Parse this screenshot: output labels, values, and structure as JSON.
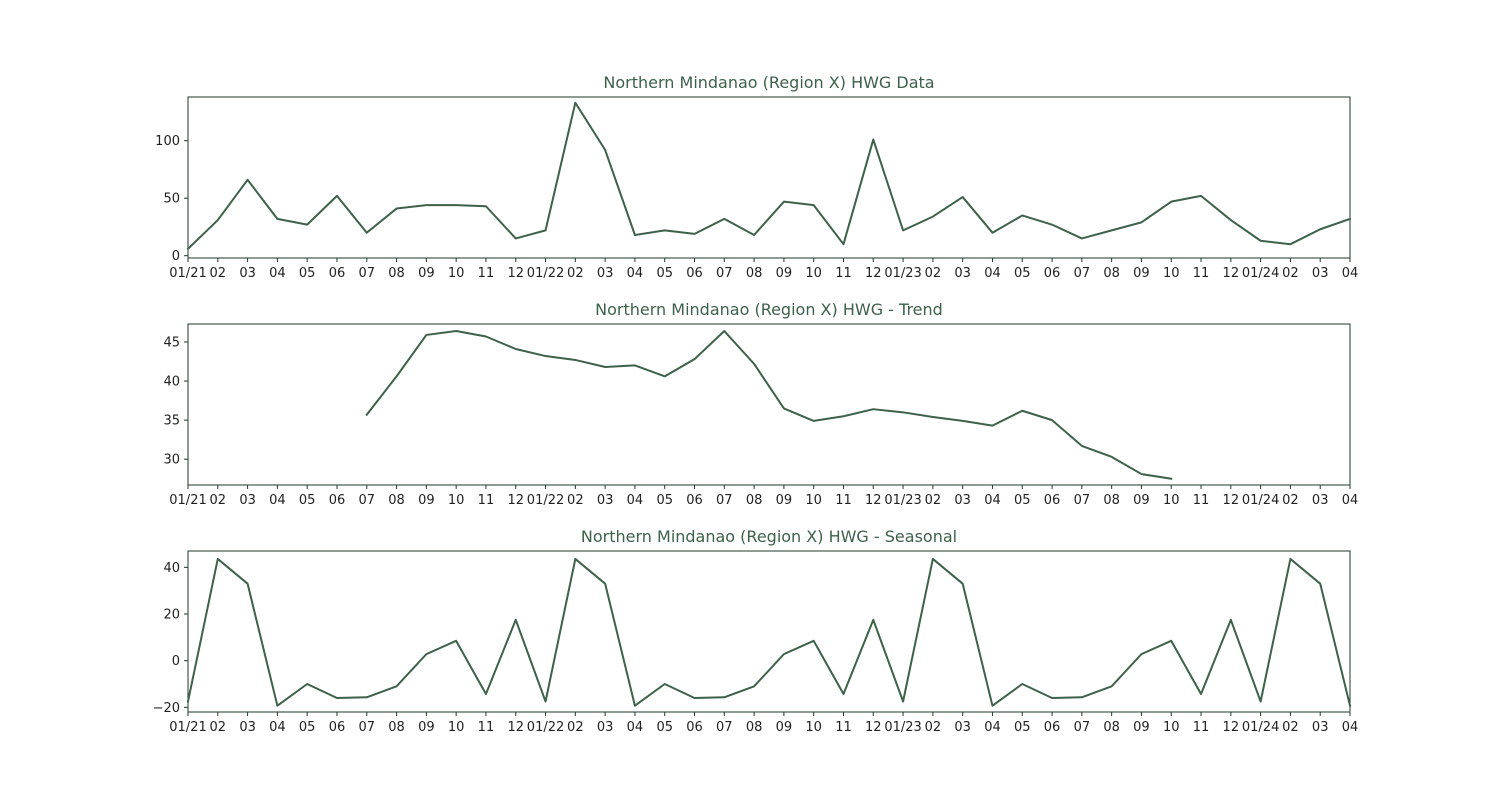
{
  "colors": {
    "line": "#3d6149",
    "axis": "#1d3a2a",
    "title": "#3d6149",
    "text": "#222222"
  },
  "chart_data": [
    {
      "type": "line",
      "title": "Northern Mindanao (Region X) HWG Data",
      "xlabel": "",
      "ylabel": "",
      "x_tick_labels": [
        "01/21",
        "02",
        "03",
        "04",
        "05",
        "06",
        "07",
        "08",
        "09",
        "10",
        "11",
        "12",
        "01/22",
        "02",
        "03",
        "04",
        "05",
        "06",
        "07",
        "08",
        "09",
        "10",
        "11",
        "12",
        "01/23",
        "02",
        "03",
        "04",
        "05",
        "06",
        "07",
        "08",
        "09",
        "10",
        "11",
        "12",
        "01/24",
        "02",
        "03",
        "04"
      ],
      "y_ticks": [
        0,
        50,
        100
      ],
      "ylim": [
        -2,
        138
      ],
      "grid": false,
      "series": [
        {
          "values": [
            6,
            31,
            66,
            32,
            27,
            52,
            20,
            41,
            44,
            44,
            43,
            15,
            22,
            133,
            92,
            18,
            22,
            19,
            32,
            18,
            47,
            44,
            10,
            101,
            22,
            34,
            51,
            20,
            35,
            27,
            15,
            22,
            29,
            47,
            52,
            31,
            13,
            10,
            23,
            32
          ]
        }
      ]
    },
    {
      "type": "line",
      "title": "Northern Mindanao (Region X) HWG - Trend",
      "xlabel": "",
      "ylabel": "",
      "x_tick_labels": [
        "01/21",
        "02",
        "03",
        "04",
        "05",
        "06",
        "07",
        "08",
        "09",
        "10",
        "11",
        "12",
        "01/22",
        "02",
        "03",
        "04",
        "05",
        "06",
        "07",
        "08",
        "09",
        "10",
        "11",
        "12",
        "01/23",
        "02",
        "03",
        "04",
        "05",
        "06",
        "07",
        "08",
        "09",
        "10",
        "11",
        "12",
        "01/24",
        "02",
        "03",
        "04"
      ],
      "y_ticks": [
        30,
        35,
        40,
        45
      ],
      "ylim": [
        26.7,
        47.3
      ],
      "grid": false,
      "series": [
        {
          "values": [
            null,
            null,
            null,
            null,
            null,
            null,
            35.7,
            40.6,
            45.9,
            46.4,
            45.7,
            44.1,
            43.2,
            42.7,
            41.8,
            42.0,
            40.6,
            42.8,
            46.4,
            42.2,
            36.5,
            34.9,
            35.5,
            36.4,
            36.0,
            35.4,
            34.9,
            34.3,
            36.2,
            35.0,
            31.7,
            30.3,
            28.1,
            27.5,
            null,
            null,
            null,
            null,
            null,
            null
          ]
        }
      ]
    },
    {
      "type": "line",
      "title": "Northern Mindanao (Region X) HWG - Seasonal",
      "xlabel": "",
      "ylabel": "",
      "x_tick_labels": [
        "01/21",
        "02",
        "03",
        "04",
        "05",
        "06",
        "07",
        "08",
        "09",
        "10",
        "11",
        "12",
        "01/22",
        "02",
        "03",
        "04",
        "05",
        "06",
        "07",
        "08",
        "09",
        "10",
        "11",
        "12",
        "01/23",
        "02",
        "03",
        "04",
        "05",
        "06",
        "07",
        "08",
        "09",
        "10",
        "11",
        "12",
        "01/24",
        "02",
        "03",
        "04"
      ],
      "y_ticks": [
        -20,
        0,
        20,
        40
      ],
      "ylim": [
        -22,
        47
      ],
      "grid": false,
      "series": [
        {
          "values": [
            -17.5,
            43.6,
            33,
            -19.3,
            -10,
            -16,
            -15.7,
            -11,
            2.8,
            8.5,
            -14.3,
            17.5,
            -17.5,
            43.6,
            33,
            -19.3,
            -10,
            -16,
            -15.7,
            -11,
            2.8,
            8.5,
            -14.3,
            17.5,
            -17.5,
            43.6,
            33,
            -19.3,
            -10,
            -16,
            -15.7,
            -11,
            2.8,
            8.5,
            -14.3,
            17.5,
            -17.5,
            43.6,
            33,
            -19.3
          ]
        }
      ]
    }
  ]
}
